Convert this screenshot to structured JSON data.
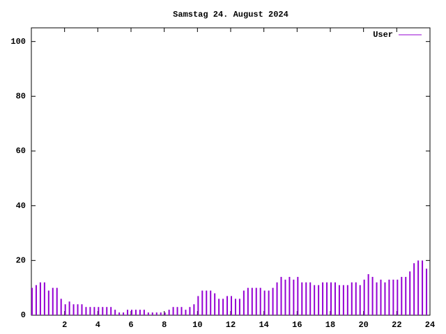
{
  "chart_data": {
    "type": "impulse",
    "title": "Samstag 24. August 2024",
    "series": [
      {
        "name": "User",
        "color": "#9400d3",
        "x": [
          0,
          0.25,
          0.5,
          0.75,
          1,
          1.25,
          1.5,
          1.75,
          2,
          2.25,
          2.5,
          2.75,
          3,
          3.25,
          3.5,
          3.75,
          4,
          4.25,
          4.5,
          4.75,
          5,
          5.25,
          5.5,
          5.75,
          6,
          6.25,
          6.5,
          6.75,
          7,
          7.25,
          7.5,
          7.75,
          8,
          8.25,
          8.5,
          8.75,
          9,
          9.25,
          9.5,
          9.75,
          10,
          10.25,
          10.5,
          10.75,
          11,
          11.25,
          11.5,
          11.75,
          12,
          12.25,
          12.5,
          12.75,
          13,
          13.25,
          13.5,
          13.75,
          14,
          14.25,
          14.5,
          14.75,
          15,
          15.25,
          15.5,
          15.75,
          16,
          16.25,
          16.5,
          16.75,
          17,
          17.25,
          17.5,
          17.75,
          18,
          18.25,
          18.5,
          18.75,
          19,
          19.25,
          19.5,
          19.75,
          20,
          20.25,
          20.5,
          20.75,
          21,
          21.25,
          21.5,
          21.75,
          22,
          22.25,
          22.5,
          22.75,
          23,
          23.25,
          23.5,
          23.75
        ],
        "values": [
          10,
          11,
          12,
          12,
          9,
          10,
          10,
          6,
          4,
          5,
          4,
          4,
          4,
          3,
          3,
          3,
          3,
          3,
          3,
          3,
          2,
          1,
          1,
          2,
          2,
          2,
          2,
          2,
          1,
          1,
          1,
          1,
          1,
          2,
          3,
          3,
          3,
          2,
          3,
          4,
          7,
          9,
          9,
          9,
          8,
          6,
          6,
          7,
          7,
          6,
          6,
          9,
          10,
          10,
          10,
          10,
          9,
          9,
          10,
          12,
          14,
          13,
          14,
          13,
          14,
          12,
          12,
          12,
          11,
          11,
          12,
          12,
          12,
          12,
          11,
          11,
          11,
          12,
          12,
          11,
          13,
          15,
          14,
          12,
          13,
          12,
          13,
          13,
          13,
          14,
          14,
          16,
          19,
          20,
          20,
          17
        ]
      }
    ],
    "xlim": [
      0,
      24
    ],
    "xticks": [
      2,
      4,
      6,
      8,
      10,
      12,
      14,
      16,
      18,
      20,
      22,
      24
    ],
    "ylim": [
      0,
      105
    ],
    "yticks": [
      0,
      20,
      40,
      60,
      80,
      100
    ],
    "legend": "top-right"
  }
}
